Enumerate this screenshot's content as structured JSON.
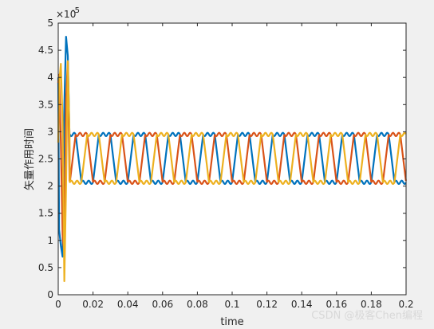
{
  "chart_data": {
    "type": "line",
    "title": "",
    "xlabel": "time",
    "ylabel": "矢量作用时间",
    "xlim": [
      0,
      0.2
    ],
    "ylim": [
      0,
      5e-05
    ],
    "y_exponent_label": "×10",
    "y_exponent_power": "-5",
    "x_ticks": [
      "0",
      "0.02",
      "0.04",
      "0.06",
      "0.08",
      "0.1",
      "0.12",
      "0.14",
      "0.16",
      "0.18",
      "0.2"
    ],
    "y_ticks": [
      "0",
      "0.5",
      "1",
      "1.5",
      "2",
      "2.5",
      "3",
      "3.5",
      "4",
      "4.5",
      "5"
    ],
    "grid": false,
    "legend": "none",
    "series": [
      {
        "color": "#0072BD",
        "transient": [
          [
            0,
            4e-05
          ],
          [
            0.0005,
            1.2e-05
          ],
          [
            0.0015,
            9e-06
          ],
          [
            0.0025,
            7e-06
          ],
          [
            0.0035,
            3.5e-05
          ],
          [
            0.0045,
            4.75e-05
          ],
          [
            0.0055,
            4.4e-05
          ],
          [
            0.0065,
            2.9e-05
          ]
        ],
        "steady": {
          "min": 2.07e-05,
          "max": 2.95e-05,
          "period": 0.02,
          "phase": 0.0
        }
      },
      {
        "color": "#D95319",
        "transient": [
          [
            0,
            3.9e-05
          ],
          [
            0.0005,
            4.05e-05
          ],
          [
            0.0015,
            2.8e-05
          ],
          [
            0.0025,
            1.1e-05
          ],
          [
            0.0035,
            7.5e-06
          ],
          [
            0.0045,
            3.6e-05
          ],
          [
            0.0055,
            4.3e-05
          ],
          [
            0.0065,
            2.1e-05
          ]
        ],
        "steady": {
          "min": 2.07e-05,
          "max": 2.95e-05,
          "period": 0.02,
          "phase": 0.00667
        }
      },
      {
        "color": "#EDB120",
        "transient": [
          [
            0,
            2.8e-05
          ],
          [
            0.0005,
            3.9e-05
          ],
          [
            0.0015,
            4.25e-05
          ],
          [
            0.0025,
            3.2e-05
          ],
          [
            0.0035,
            2.5e-06
          ],
          [
            0.0045,
            2e-05
          ],
          [
            0.0055,
            4.3e-05
          ],
          [
            0.0065,
            2.9e-05
          ]
        ],
        "steady": {
          "min": 2.07e-05,
          "max": 2.95e-05,
          "period": 0.02,
          "phase": 0.01333
        }
      }
    ]
  },
  "watermark": "CSDN @极客Chen编程"
}
